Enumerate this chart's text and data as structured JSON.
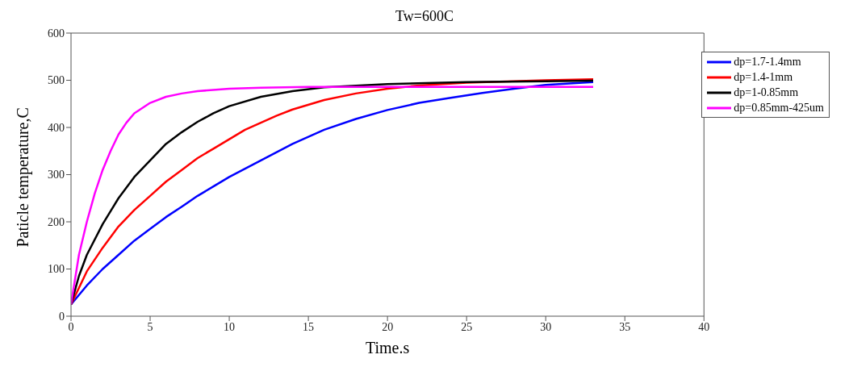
{
  "chart_data": {
    "type": "line",
    "title": "Tw=600C",
    "xlabel": "Time.s",
    "ylabel": "Paticle temperature,C",
    "xlim": [
      0,
      40
    ],
    "xticks": [
      0,
      5,
      10,
      15,
      20,
      25,
      30,
      35,
      40
    ],
    "ylim": [
      0,
      600
    ],
    "yticks": [
      0,
      100,
      200,
      300,
      400,
      500,
      600
    ],
    "grid": false,
    "legend": "top right",
    "marker": "none",
    "line_style": "solid",
    "series": [
      {
        "name": "dp=1.7-1.4mm",
        "color": "#0000ff",
        "x": [
          0,
          1,
          2,
          3,
          4,
          5,
          6,
          7,
          8,
          9,
          10,
          12,
          14,
          16,
          18,
          20,
          22,
          24,
          26,
          28,
          30,
          33
        ],
        "values": [
          25,
          65,
          100,
          130,
          160,
          185,
          210,
          232,
          255,
          275,
          295,
          330,
          365,
          395,
          418,
          437,
          452,
          463,
          473,
          482,
          490,
          496
        ]
      },
      {
        "name": "dp=1.4-1mm",
        "color": "#ff0000",
        "x": [
          0,
          1,
          2,
          3,
          4,
          5,
          6,
          7,
          8,
          9,
          10,
          11,
          12,
          13,
          14,
          16,
          18,
          20,
          22,
          25,
          30,
          33
        ],
        "values": [
          25,
          95,
          145,
          190,
          225,
          255,
          285,
          310,
          335,
          355,
          375,
          395,
          410,
          425,
          438,
          458,
          472,
          482,
          489,
          495,
          500,
          502
        ]
      },
      {
        "name": "dp=1-0.85mm",
        "color": "#000000",
        "x": [
          0,
          0.5,
          1,
          2,
          3,
          4,
          5,
          6,
          7,
          8,
          9,
          10,
          12,
          14,
          16,
          20,
          25,
          30,
          33
        ],
        "values": [
          25,
          85,
          130,
          195,
          250,
          295,
          330,
          365,
          390,
          412,
          430,
          445,
          465,
          477,
          485,
          492,
          496,
          498,
          499
        ]
      },
      {
        "name": "dp=0.85mm-425um",
        "color": "#ff00ff",
        "x": [
          0,
          0.5,
          1,
          1.5,
          2,
          2.5,
          3,
          3.5,
          4,
          5,
          6,
          7,
          8,
          10,
          12,
          15,
          20,
          25,
          33
        ],
        "values": [
          25,
          130,
          200,
          260,
          310,
          350,
          385,
          410,
          430,
          452,
          465,
          472,
          477,
          482,
          484,
          486,
          486,
          486,
          486
        ]
      }
    ]
  }
}
